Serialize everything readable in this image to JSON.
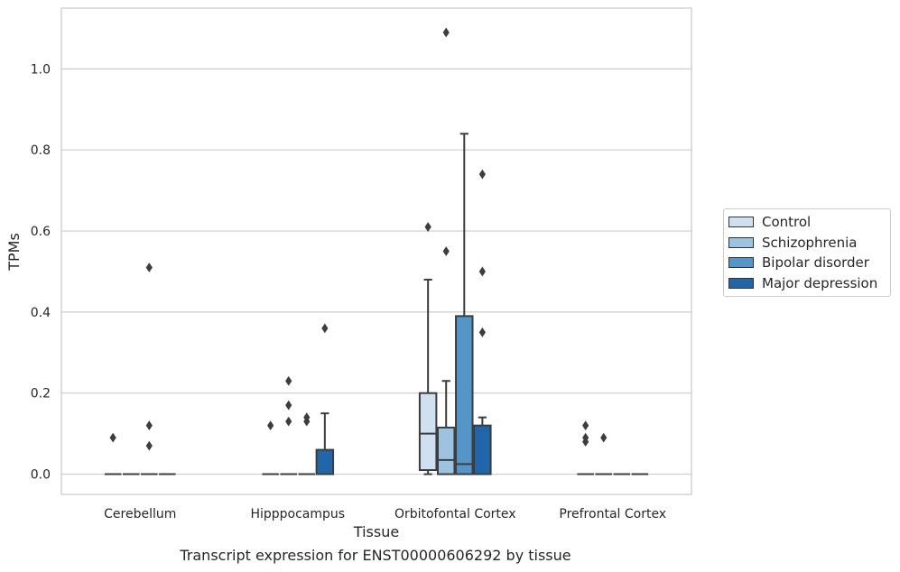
{
  "chart_data": {
    "type": "box",
    "xlabel": "Tissue",
    "ylabel": "TPMs",
    "caption": "Transcript expression for ENST00000606292 by tissue",
    "ylim": [
      -0.05,
      1.15
    ],
    "yticks": [
      "0.0",
      "0.2",
      "0.4",
      "0.6",
      "0.8",
      "1.0"
    ],
    "ytick_values": [
      0.0,
      0.2,
      0.4,
      0.6,
      0.8,
      1.0
    ],
    "grid": "horizontal",
    "legend_position": "right",
    "categories": [
      "Cerebellum",
      "Hipppocampus",
      "Orbitofontal Cortex",
      "Prefrontal Cortex"
    ],
    "series": [
      {
        "name": "Control",
        "color": "#cfe0f0",
        "boxes": [
          {
            "q1": 0,
            "median": 0,
            "q3": 0,
            "whislo": 0,
            "whishi": 0,
            "fliers": [
              0.09
            ]
          },
          {
            "q1": 0,
            "median": 0,
            "q3": 0,
            "whislo": 0,
            "whishi": 0,
            "fliers": [
              0.12
            ]
          },
          {
            "q1": 0.01,
            "median": 0.1,
            "q3": 0.2,
            "whislo": 0.0,
            "whishi": 0.48,
            "fliers": [
              0.61
            ]
          },
          {
            "q1": 0,
            "median": 0,
            "q3": 0,
            "whislo": 0,
            "whishi": 0,
            "fliers": [
              0.08,
              0.09,
              0.12
            ]
          }
        ]
      },
      {
        "name": "Schizophrenia",
        "color": "#9cc3df",
        "boxes": [
          {
            "q1": 0,
            "median": 0,
            "q3": 0,
            "whislo": 0,
            "whishi": 0,
            "fliers": []
          },
          {
            "q1": 0,
            "median": 0,
            "q3": 0,
            "whislo": 0,
            "whishi": 0,
            "fliers": [
              0.13,
              0.17,
              0.23
            ]
          },
          {
            "q1": 0.0,
            "median": 0.035,
            "q3": 0.115,
            "whislo": 0.0,
            "whishi": 0.23,
            "fliers": [
              0.55,
              1.09
            ]
          },
          {
            "q1": 0,
            "median": 0,
            "q3": 0,
            "whislo": 0,
            "whishi": 0,
            "fliers": [
              0.09
            ]
          }
        ]
      },
      {
        "name": "Bipolar disorder",
        "color": "#5396c7",
        "boxes": [
          {
            "q1": 0,
            "median": 0,
            "q3": 0,
            "whislo": 0,
            "whishi": 0,
            "fliers": [
              0.07,
              0.12,
              0.51
            ]
          },
          {
            "q1": 0,
            "median": 0,
            "q3": 0,
            "whislo": 0,
            "whishi": 0,
            "fliers": [
              0.13,
              0.14
            ]
          },
          {
            "q1": 0.0,
            "median": 0.025,
            "q3": 0.39,
            "whislo": 0.0,
            "whishi": 0.84,
            "fliers": []
          },
          {
            "q1": 0,
            "median": 0,
            "q3": 0,
            "whislo": 0,
            "whishi": 0,
            "fliers": []
          }
        ]
      },
      {
        "name": "Major depression",
        "color": "#2066a8",
        "boxes": [
          {
            "q1": 0,
            "median": 0,
            "q3": 0,
            "whislo": 0,
            "whishi": 0,
            "fliers": []
          },
          {
            "q1": 0.0,
            "median": 0.0,
            "q3": 0.06,
            "whislo": 0.0,
            "whishi": 0.15,
            "fliers": [
              0.36
            ]
          },
          {
            "q1": 0.0,
            "median": 0.0,
            "q3": 0.12,
            "whislo": 0.0,
            "whishi": 0.14,
            "fliers": [
              0.35,
              0.5,
              0.74
            ]
          },
          {
            "q1": 0,
            "median": 0,
            "q3": 0,
            "whislo": 0,
            "whishi": 0,
            "fliers": []
          }
        ]
      }
    ]
  }
}
